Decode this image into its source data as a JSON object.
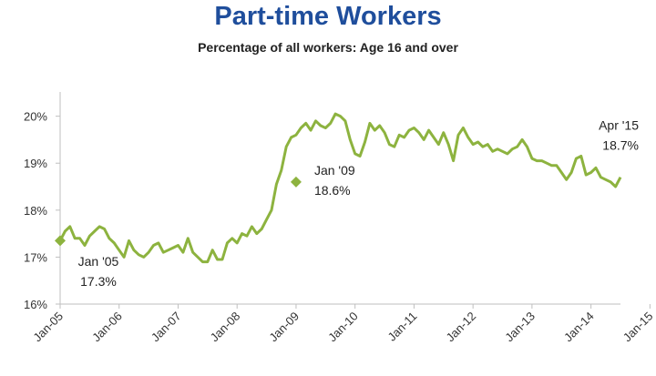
{
  "chart_data": {
    "type": "line",
    "title": "Part-time Workers",
    "subtitle": "Percentage of all workers: Age 16 and over",
    "y_ticks": [
      "16%",
      "17%",
      "18%",
      "19%",
      "20%"
    ],
    "ylim": [
      16,
      20.4
    ],
    "x_ticks": [
      "Jan-05",
      "Jan-06",
      "Jan-07",
      "Jan-08",
      "Jan-09",
      "Jan-10",
      "Jan-11",
      "Jan-12",
      "Jan-13",
      "Jan-14",
      "Jan-15"
    ],
    "x_start": "Jan-05",
    "x_end": "Apr-15",
    "grid": false,
    "line_color": "#8db33f",
    "series": [
      {
        "values": [
          17.35,
          17.55,
          17.65,
          17.4,
          17.4,
          17.25,
          17.45,
          17.55,
          17.65,
          17.6,
          17.4,
          17.3,
          17.15,
          17.0,
          17.35,
          17.15,
          17.05,
          17.0,
          17.1,
          17.25,
          17.3,
          17.1,
          17.15,
          17.2,
          17.25,
          17.1,
          17.4,
          17.1,
          17.0,
          16.9,
          16.9,
          17.15,
          16.95,
          16.95,
          17.3,
          17.4,
          17.3,
          17.5,
          17.45,
          17.65,
          17.5,
          17.6,
          17.8,
          18.0,
          18.55,
          18.85,
          19.35,
          19.55,
          19.6,
          19.75,
          19.85,
          19.7,
          19.9,
          19.8,
          19.75,
          19.85,
          20.05,
          20.0,
          19.9,
          19.5,
          19.2,
          19.15,
          19.45,
          19.85,
          19.7,
          19.8,
          19.65,
          19.4,
          19.35,
          19.6,
          19.55,
          19.7,
          19.75,
          19.65,
          19.5,
          19.7,
          19.55,
          19.4,
          19.65,
          19.4,
          19.05,
          19.6,
          19.75,
          19.55,
          19.4,
          19.45,
          19.35,
          19.4,
          19.25,
          19.3,
          19.25,
          19.2,
          19.3,
          19.35,
          19.5,
          19.35,
          19.1,
          19.05,
          19.05,
          19.0,
          18.95,
          18.95,
          18.8,
          18.65,
          18.8,
          19.1,
          19.15,
          18.75,
          18.8,
          18.9,
          18.7,
          18.65,
          18.6,
          18.5,
          18.7
        ]
      }
    ],
    "annotations": [
      {
        "label": "Jan '05",
        "value": "17.3%",
        "x_index": 0,
        "y": 17.35,
        "anchor": "middle"
      },
      {
        "label": "Jan '09",
        "value": "18.6%",
        "x_index": 48,
        "y": 18.6,
        "anchor": "start"
      },
      {
        "label": "Apr '15",
        "value": "18.7%",
        "x_index": 123,
        "y": 18.7,
        "anchor": "end"
      }
    ]
  }
}
